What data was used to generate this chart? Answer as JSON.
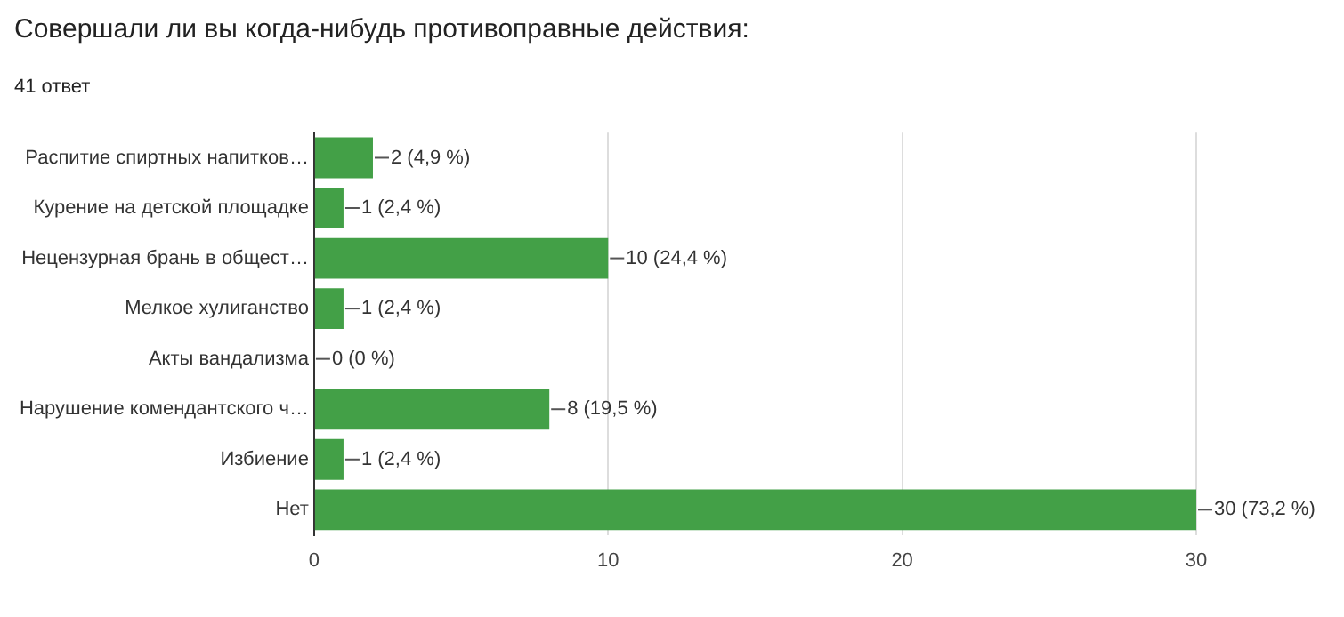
{
  "chart_data": {
    "type": "bar",
    "orientation": "horizontal",
    "title": "Совершали ли вы когда-нибудь противоправные действия:",
    "subtitle": "41 ответ",
    "categories": [
      "Распитие спиртных напитков…",
      "Курение на детской площадке",
      "Нецензурная брань в общест…",
      "Мелкое хулиганство",
      "Акты вандализма",
      "Нарушение комендантского ч…",
      "Избиение",
      "Нет"
    ],
    "values": [
      2,
      1,
      10,
      1,
      0,
      8,
      1,
      30
    ],
    "value_labels": [
      "2 (4,9 %)",
      "1 (2,4 %)",
      "10 (24,4 %)",
      "1 (2,4 %)",
      "0 (0 %)",
      "8 (19,5 %)",
      "1 (2,4 %)",
      "30 (73,2 %)"
    ],
    "color": "#43a047",
    "xlim": [
      0,
      30
    ],
    "xticks": [
      0,
      10,
      20,
      30
    ],
    "grid": "x",
    "legend": false
  }
}
